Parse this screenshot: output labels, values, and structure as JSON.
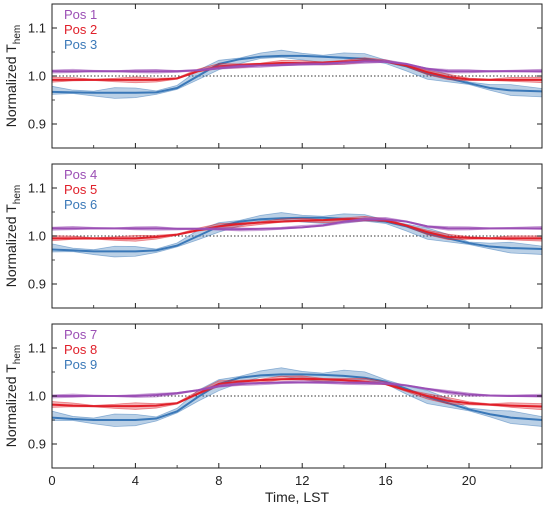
{
  "chart_data": [
    {
      "type": "line",
      "xlabel": "",
      "ylabel_main": "Normalized T",
      "ylabel_sub": "hem",
      "xlim": [
        0,
        23.5
      ],
      "ylim": [
        0.85,
        1.15
      ],
      "yticks": [
        "0.9",
        "1.0",
        "1.1"
      ],
      "ytick_values": [
        0.9,
        1.0,
        1.1
      ],
      "xticks": [
        "0",
        "4",
        "8",
        "12",
        "16",
        "20"
      ],
      "xtick_values": [
        0,
        4,
        8,
        12,
        16,
        20
      ],
      "reference_line": 1.0,
      "show_xtick_labels": false,
      "x": [
        0,
        1,
        2,
        3,
        4,
        5,
        6,
        7,
        8,
        9,
        10,
        11,
        12,
        13,
        14,
        15,
        16,
        17,
        18,
        19,
        20,
        21,
        22,
        23.5
      ],
      "series": [
        {
          "name": "Pos 1",
          "color": "#9b4fb5",
          "values": [
            1.01,
            1.01,
            1.01,
            1.01,
            1.01,
            1.01,
            1.01,
            1.012,
            1.016,
            1.02,
            1.022,
            1.023,
            1.024,
            1.025,
            1.028,
            1.03,
            1.03,
            1.025,
            1.015,
            1.01,
            1.01,
            1.01,
            1.01,
            1.01
          ],
          "band": 0.004
        },
        {
          "name": "Pos 2",
          "color": "#e0202a",
          "values": [
            0.992,
            0.992,
            0.992,
            0.992,
            0.992,
            0.992,
            0.995,
            1.01,
            1.02,
            1.023,
            1.025,
            1.027,
            1.027,
            1.028,
            1.03,
            1.032,
            1.03,
            1.022,
            1.008,
            0.998,
            0.993,
            0.992,
            0.992,
            0.992
          ],
          "band": 0.006
        },
        {
          "name": "Pos 3",
          "color": "#3a78b8",
          "values": [
            0.967,
            0.966,
            0.965,
            0.965,
            0.965,
            0.966,
            0.975,
            1.0,
            1.025,
            1.035,
            1.04,
            1.042,
            1.042,
            1.04,
            1.038,
            1.036,
            1.03,
            1.02,
            1.005,
            0.995,
            0.985,
            0.975,
            0.97,
            0.968
          ],
          "band": 0.012
        }
      ]
    },
    {
      "type": "line",
      "xlabel": "",
      "ylabel_main": "Normalized T",
      "ylabel_sub": "hem",
      "xlim": [
        0,
        23.5
      ],
      "ylim": [
        0.85,
        1.15
      ],
      "yticks": [
        "0.9",
        "1.0",
        "1.1"
      ],
      "ytick_values": [
        0.9,
        1.0,
        1.1
      ],
      "xticks": [
        "0",
        "4",
        "8",
        "12",
        "16",
        "20"
      ],
      "xtick_values": [
        0,
        4,
        8,
        12,
        16,
        20
      ],
      "reference_line": 1.0,
      "show_xtick_labels": false,
      "x": [
        0,
        1,
        2,
        3,
        4,
        5,
        6,
        7,
        8,
        9,
        10,
        11,
        12,
        13,
        14,
        15,
        16,
        17,
        18,
        19,
        20,
        21,
        22,
        23.5
      ],
      "series": [
        {
          "name": "Pos 4",
          "color": "#9b4fb5",
          "values": [
            1.016,
            1.016,
            1.016,
            1.016,
            1.016,
            1.016,
            1.015,
            1.015,
            1.014,
            1.014,
            1.015,
            1.016,
            1.018,
            1.022,
            1.03,
            1.035,
            1.035,
            1.03,
            1.02,
            1.016,
            1.016,
            1.016,
            1.016,
            1.016
          ],
          "band": 0.004
        },
        {
          "name": "Pos 5",
          "color": "#e0202a",
          "values": [
            0.995,
            0.995,
            0.995,
            0.995,
            0.995,
            0.998,
            1.003,
            1.012,
            1.02,
            1.025,
            1.028,
            1.03,
            1.032,
            1.033,
            1.035,
            1.035,
            1.032,
            1.022,
            1.008,
            0.998,
            0.996,
            0.995,
            0.995,
            0.995
          ],
          "band": 0.006
        },
        {
          "name": "Pos 6",
          "color": "#3a78b8",
          "values": [
            0.972,
            0.97,
            0.968,
            0.968,
            0.968,
            0.97,
            0.98,
            1.0,
            1.02,
            1.03,
            1.035,
            1.037,
            1.038,
            1.038,
            1.036,
            1.034,
            1.03,
            1.02,
            1.005,
            0.995,
            0.985,
            0.978,
            0.975,
            0.973
          ],
          "band": 0.012
        }
      ]
    },
    {
      "type": "line",
      "xlabel": "Time, LST",
      "ylabel_main": "Normalized T",
      "ylabel_sub": "hem",
      "xlim": [
        0,
        23.5
      ],
      "ylim": [
        0.85,
        1.15
      ],
      "yticks": [
        "0.9",
        "1.0",
        "1.1"
      ],
      "ytick_values": [
        0.9,
        1.0,
        1.1
      ],
      "xticks": [
        "0",
        "4",
        "8",
        "12",
        "16",
        "20"
      ],
      "xtick_values": [
        0,
        4,
        8,
        12,
        16,
        20
      ],
      "reference_line": 1.0,
      "show_xtick_labels": true,
      "x": [
        0,
        1,
        2,
        3,
        4,
        5,
        6,
        7,
        8,
        9,
        10,
        11,
        12,
        13,
        14,
        15,
        16,
        17,
        18,
        19,
        20,
        21,
        22,
        23.5
      ],
      "series": [
        {
          "name": "Pos 7",
          "color": "#9b4fb5",
          "values": [
            1.0,
            1.0,
            1.0,
            1.0,
            1.0,
            1.002,
            1.006,
            1.012,
            1.02,
            1.025,
            1.027,
            1.028,
            1.028,
            1.028,
            1.028,
            1.027,
            1.026,
            1.022,
            1.015,
            1.008,
            1.003,
            1.001,
            1.0,
            1.0
          ],
          "band": 0.004
        },
        {
          "name": "Pos 8",
          "color": "#e0202a",
          "values": [
            0.982,
            0.98,
            0.979,
            0.979,
            0.979,
            0.98,
            0.985,
            1.005,
            1.025,
            1.03,
            1.033,
            1.035,
            1.036,
            1.035,
            1.033,
            1.03,
            1.025,
            1.012,
            1.0,
            0.99,
            0.985,
            0.982,
            0.98,
            0.978
          ],
          "band": 0.007
        },
        {
          "name": "Pos 9",
          "color": "#3a78b8",
          "values": [
            0.955,
            0.952,
            0.95,
            0.95,
            0.95,
            0.953,
            0.968,
            0.998,
            1.025,
            1.038,
            1.043,
            1.045,
            1.045,
            1.044,
            1.042,
            1.038,
            1.03,
            1.015,
            0.998,
            0.985,
            0.972,
            0.962,
            0.955,
            0.95
          ],
          "band": 0.014
        }
      ]
    }
  ]
}
